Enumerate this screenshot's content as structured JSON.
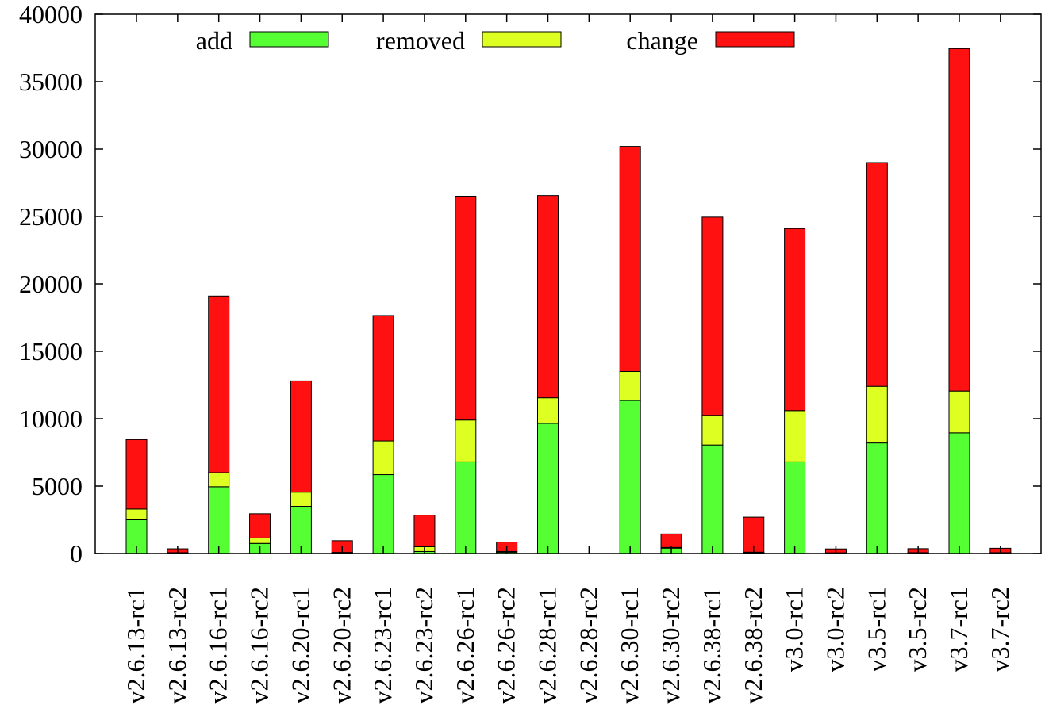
{
  "chart_data": {
    "type": "bar",
    "stacked": true,
    "categories": [
      "v2.6.13-rc1",
      "v2.6.13-rc2",
      "v2.6.16-rc1",
      "v2.6.16-rc2",
      "v2.6.20-rc1",
      "v2.6.20-rc2",
      "v2.6.23-rc1",
      "v2.6.23-rc2",
      "v2.6.26-rc1",
      "v2.6.26-rc2",
      "v2.6.28-rc1",
      "v2.6.28-rc2",
      "v2.6.30-rc1",
      "v2.6.30-rc2",
      "v2.6.38-rc1",
      "v2.6.38-rc2",
      "v3.0-rc1",
      "v3.0-rc2",
      "v3.5-rc1",
      "v3.5-rc2",
      "v3.7-rc1",
      "v3.7-rc2"
    ],
    "series": [
      {
        "name": "add",
        "color": "#55ff33",
        "values": [
          2500,
          40,
          4950,
          750,
          3500,
          50,
          5850,
          150,
          6800,
          100,
          9650,
          0,
          11350,
          400,
          8050,
          60,
          6800,
          30,
          8200,
          40,
          8950,
          40
        ]
      },
      {
        "name": "removed",
        "color": "#ddff22",
        "values": [
          800,
          20,
          1050,
          400,
          1050,
          30,
          2500,
          350,
          3100,
          50,
          1900,
          0,
          2150,
          50,
          2200,
          40,
          3800,
          20,
          4200,
          20,
          3100,
          20
        ]
      },
      {
        "name": "change",
        "color": "#ff1111",
        "values": [
          5150,
          290,
          13100,
          1800,
          8250,
          870,
          9300,
          2350,
          16600,
          700,
          15000,
          0,
          16700,
          1000,
          14700,
          2600,
          13500,
          290,
          16600,
          300,
          25400,
          330
        ]
      }
    ],
    "ylim": [
      0,
      40000
    ],
    "yticks": [
      "0",
      "5000",
      "10000",
      "15000",
      "20000",
      "25000",
      "30000",
      "35000",
      "40000"
    ],
    "ytick_values": [
      0,
      5000,
      10000,
      15000,
      20000,
      25000,
      30000,
      35000,
      40000
    ],
    "legend_position": "top-left",
    "grid": false,
    "title": "",
    "xlabel": "",
    "ylabel": ""
  }
}
